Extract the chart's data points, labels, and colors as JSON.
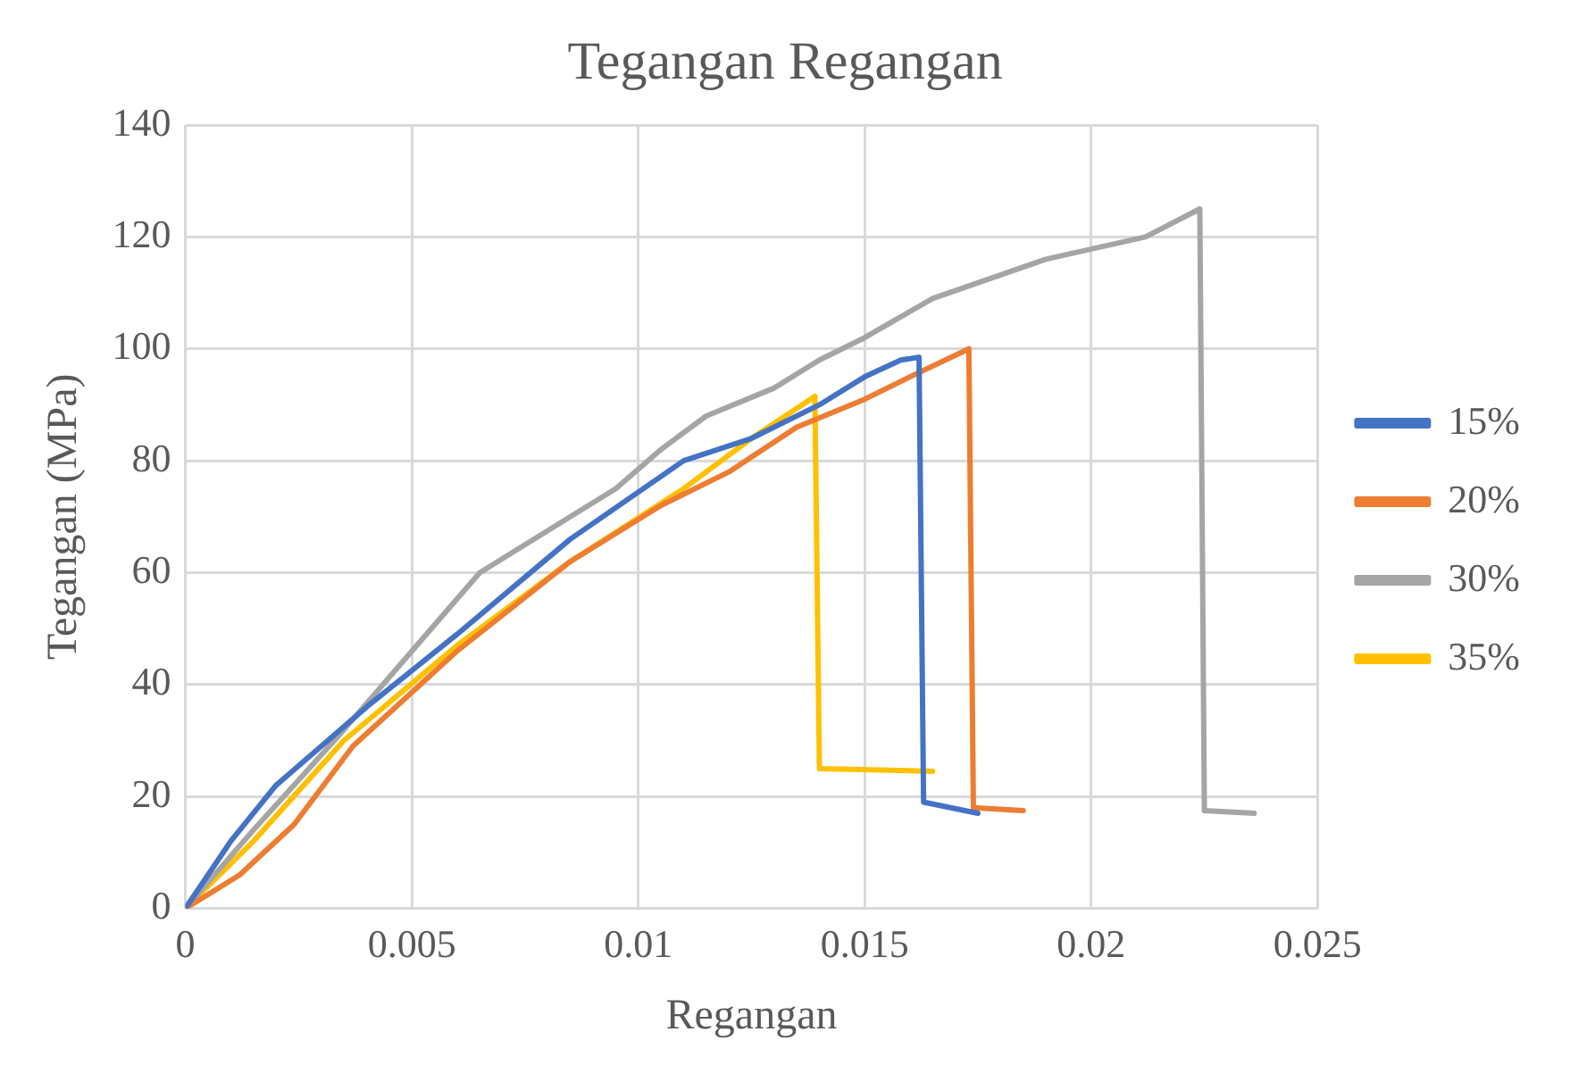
{
  "chart_data": {
    "type": "line",
    "title": "Tegangan Regangan",
    "xlabel": "Regangan",
    "ylabel": "Tegangan (MPa)",
    "xlim": [
      0,
      0.025
    ],
    "xticks": [
      0,
      0.005,
      0.01,
      0.015,
      0.02,
      0.025
    ],
    "ylim": [
      0,
      140
    ],
    "yticks": [
      0,
      20,
      40,
      60,
      80,
      100,
      120,
      140
    ],
    "grid": true,
    "legend": "right",
    "marker": "none",
    "series": [
      {
        "name": "15%",
        "color": "#4472c4",
        "x": [
          0,
          0.001,
          0.002,
          0.004,
          0.006,
          0.0085,
          0.011,
          0.0125,
          0.014,
          0.015,
          0.0158,
          0.0162,
          0.0163,
          0.0175
        ],
        "values": [
          0,
          12,
          22,
          36,
          49,
          66,
          80,
          84,
          90,
          95,
          98,
          98.5,
          19,
          17
        ]
      },
      {
        "name": "20%",
        "color": "#ed7d31",
        "x": [
          0,
          0.0012,
          0.0024,
          0.0037,
          0.006,
          0.0085,
          0.0105,
          0.012,
          0.0135,
          0.015,
          0.016,
          0.0173,
          0.0174,
          0.0185
        ],
        "values": [
          0,
          6,
          15,
          29,
          46,
          62,
          72,
          78,
          86,
          91,
          95,
          100,
          18,
          17.5
        ]
      },
      {
        "name": "30%",
        "color": "#a5a5a5",
        "x": [
          0,
          0.0015,
          0.0034,
          0.0065,
          0.0085,
          0.0095,
          0.0105,
          0.0115,
          0.013,
          0.014,
          0.015,
          0.0165,
          0.019,
          0.0212,
          0.0224,
          0.0225,
          0.0236
        ],
        "values": [
          0,
          14,
          31,
          60,
          70,
          75,
          82,
          88,
          93,
          98,
          102,
          109,
          116,
          120,
          125,
          17.5,
          17
        ]
      },
      {
        "name": "35%",
        "color": "#ffc000",
        "x": [
          0,
          0.0015,
          0.0035,
          0.006,
          0.0085,
          0.011,
          0.0125,
          0.0139,
          0.014,
          0.0165
        ],
        "values": [
          0,
          12,
          30,
          47,
          62,
          75,
          84,
          91.5,
          25,
          24.5
        ]
      }
    ]
  }
}
